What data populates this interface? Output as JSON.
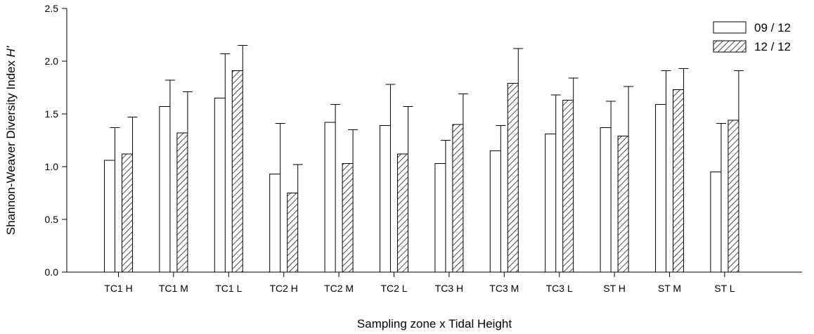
{
  "chart_data": {
    "type": "bar",
    "title": "",
    "xlabel": "Sampling zone x Tidal Height",
    "ylabel": "Shannon-Weaver Diversity Index ",
    "ylabel_italic": "H'",
    "ylim": [
      0,
      2.5
    ],
    "yticks": [
      "0.0",
      "0.5",
      "1.0",
      "1.5",
      "2.0",
      "2.5"
    ],
    "grid": false,
    "legend_position": "top-right",
    "categories": [
      "TC1 H",
      "TC1 M",
      "TC1 L",
      "TC2 H",
      "TC2 M",
      "TC2 L",
      "TC3 H",
      "TC3 M",
      "TC3 L",
      "ST H",
      "ST M",
      "ST L"
    ],
    "series": [
      {
        "name": "09 / 12",
        "pattern": "solid-white",
        "values": [
          1.06,
          1.57,
          1.65,
          0.93,
          1.42,
          1.39,
          1.03,
          1.15,
          1.31,
          1.37,
          1.59,
          0.95
        ],
        "error_upper": [
          1.37,
          1.82,
          2.07,
          1.41,
          1.59,
          1.78,
          1.25,
          1.39,
          1.68,
          1.62,
          1.91,
          1.41
        ]
      },
      {
        "name": "12 / 12",
        "pattern": "hatched",
        "values": [
          1.12,
          1.32,
          1.91,
          0.75,
          1.03,
          1.12,
          1.4,
          1.79,
          1.63,
          1.29,
          1.73,
          1.44
        ],
        "error_upper": [
          1.47,
          1.71,
          2.15,
          1.02,
          1.35,
          1.57,
          1.69,
          2.12,
          1.84,
          1.76,
          1.93,
          1.91
        ]
      }
    ]
  }
}
